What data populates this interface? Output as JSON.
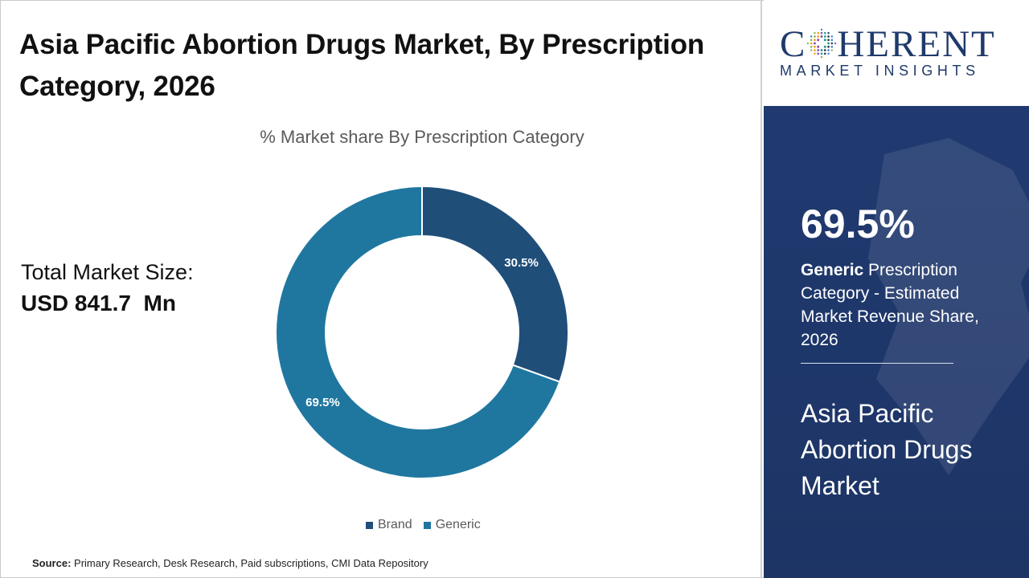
{
  "header": {
    "title": "Asia Pacific Abortion Drugs Market, By Prescription Category, 2026"
  },
  "total": {
    "label": "Total Market Size:",
    "value": "USD 841.7  Mn"
  },
  "source": {
    "label": "Source:",
    "text": " Primary Research, Desk Research, Paid subscriptions, CMI Data Repository"
  },
  "logo": {
    "word_left": "C",
    "word_right": "HERENT",
    "tagline": "MARKET INSIGHTS"
  },
  "panel": {
    "highlight_value": "69.5%",
    "highlight_bold": "Generic",
    "highlight_text": " Prescription Category - Estimated Market Revenue Share, 2026",
    "market_name": "Asia Pacific Abortion Drugs Market"
  },
  "colors": {
    "brand": "#1f4e79",
    "generic": "#1f77a0",
    "panel": "#203a70"
  },
  "chart_data": {
    "type": "pie",
    "title": "% Market share By Prescription Category",
    "donut": true,
    "categories": [
      "Brand",
      "Generic"
    ],
    "values": [
      30.5,
      69.5
    ],
    "labels": [
      "30.5%",
      "69.5%"
    ],
    "legend_position": "bottom"
  }
}
